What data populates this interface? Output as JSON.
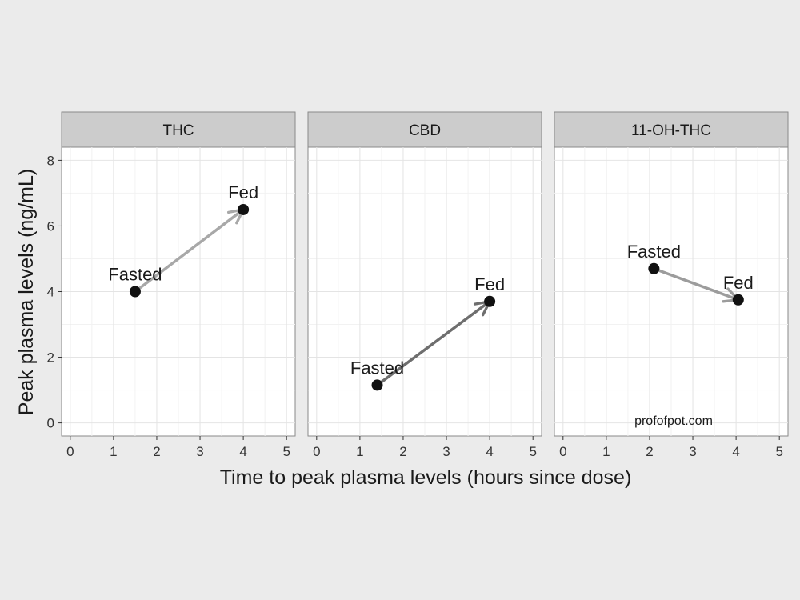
{
  "chart_data": {
    "type": "scatter",
    "facets": [
      {
        "title": "THC",
        "points": [
          {
            "label": "Fasted",
            "x": 1.5,
            "y": 4.0
          },
          {
            "label": "Fed",
            "x": 4.0,
            "y": 6.5
          }
        ],
        "arrow_color": "#a8a8a8"
      },
      {
        "title": "CBD",
        "points": [
          {
            "label": "Fasted",
            "x": 1.4,
            "y": 1.15
          },
          {
            "label": "Fed",
            "x": 4.0,
            "y": 3.7
          }
        ],
        "arrow_color": "#6e6e6e"
      },
      {
        "title": "11-OH-THC",
        "points": [
          {
            "label": "Fasted",
            "x": 2.1,
            "y": 4.7
          },
          {
            "label": "Fed",
            "x": 4.05,
            "y": 3.75
          }
        ],
        "arrow_color": "#9c9c9c"
      }
    ],
    "xlabel": "Time to peak plasma levels (hours since dose)",
    "ylabel": "Peak plasma levels (ng/mL)",
    "xlim": [
      -0.2,
      5.2
    ],
    "ylim": [
      -0.4,
      8.4
    ],
    "xticks": [
      0,
      1,
      2,
      3,
      4,
      5
    ],
    "yticks": [
      0,
      2,
      4,
      6,
      8
    ],
    "grid": true,
    "watermark": "profofpot.com"
  },
  "colors": {
    "background": "#ebebeb",
    "panel": "#ffffff",
    "strip": "#cccccc",
    "point": "#111111"
  }
}
